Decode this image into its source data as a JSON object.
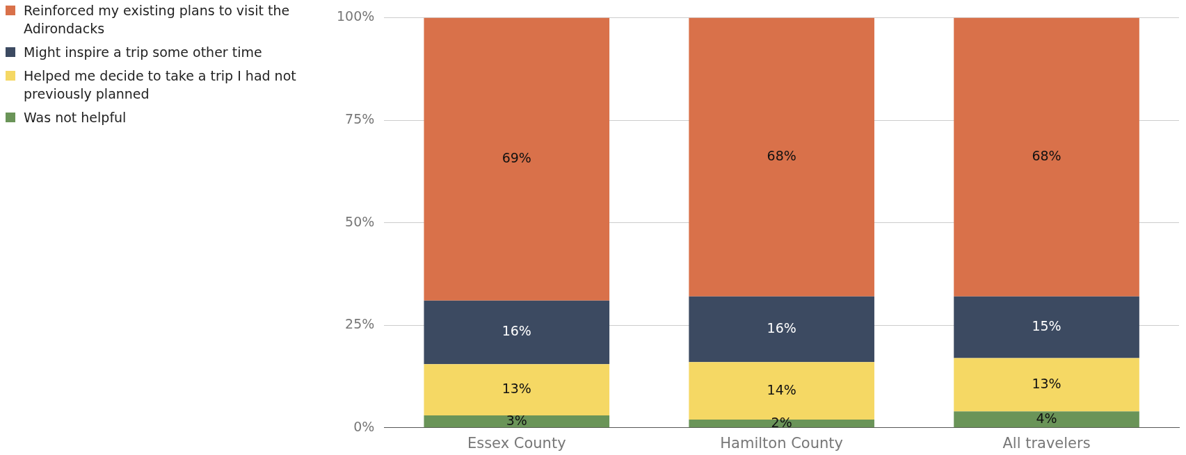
{
  "chart_data": {
    "type": "bar",
    "stacked": true,
    "categories": [
      "Essex County",
      "Hamilton County",
      "All travelers"
    ],
    "series": [
      {
        "name": "Was not helpful",
        "color": "#6a9458",
        "values": [
          3,
          2,
          4
        ],
        "value_labels": [
          "3%",
          "2%",
          "4%"
        ]
      },
      {
        "name": "Helped me decide to take a trip I had not previously planned",
        "color": "#f5d864",
        "values": [
          12.5,
          14,
          13
        ],
        "value_labels": [
          "13%",
          "14%",
          "13%"
        ]
      },
      {
        "name": "Might inspire a trip some other time",
        "color": "#3c4a61",
        "values": [
          15.5,
          16,
          15
        ],
        "value_labels": [
          "16%",
          "16%",
          "15%"
        ]
      },
      {
        "name": "Reinforced my existing plans to visit the Adirondacks",
        "color": "#d9714a",
        "values": [
          69,
          68,
          68
        ],
        "value_labels": [
          "69%",
          "68%",
          "68%"
        ]
      }
    ],
    "ylim": [
      0,
      100
    ],
    "yticks": [
      {
        "value": 0,
        "label": "0%"
      },
      {
        "value": 25,
        "label": "25%"
      },
      {
        "value": 50,
        "label": "50%"
      },
      {
        "value": 75,
        "label": "75%"
      },
      {
        "value": 100,
        "label": "100%"
      }
    ],
    "grid": "y",
    "legend": "left"
  }
}
